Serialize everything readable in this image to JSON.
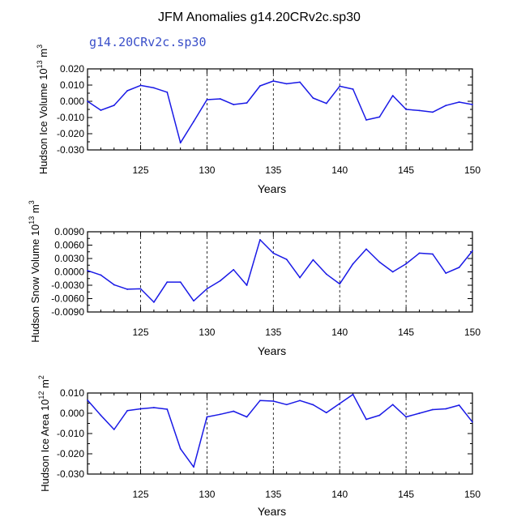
{
  "figure": {
    "title": "JFM Anomalies g14.20CRv2c.sp30",
    "subtitle": "g14.20CRv2c.sp30",
    "line_color": "#1a1ae6",
    "subtitle_color": "#3a4fc9"
  },
  "chart_data": [
    {
      "type": "line",
      "ylabel_main": "Hudson Ice Volume 10",
      "ylabel_exp": "13",
      "ylabel_unit": " m",
      "ylabel_unit_exp": "3",
      "xlabel": "Years",
      "xlim": [
        121,
        150
      ],
      "ylim": [
        -0.03,
        0.02
      ],
      "xticks": [
        125,
        130,
        135,
        140,
        145,
        150
      ],
      "xtick_labels": [
        "125",
        "130",
        "135",
        "140",
        "145",
        "150"
      ],
      "yticks": [
        0.02,
        0.01,
        0.0,
        -0.01,
        -0.02,
        -0.03
      ],
      "ytick_labels": [
        "0.020",
        "0.010",
        "0.000",
        "-0.010",
        "-0.020",
        "-0.030"
      ],
      "grid": "dashed vertical at x ticks",
      "x": [
        121,
        122,
        123,
        124,
        125,
        126,
        127,
        128,
        129,
        130,
        131,
        132,
        133,
        134,
        135,
        136,
        137,
        138,
        139,
        140,
        141,
        142,
        143,
        144,
        145,
        146,
        147,
        148,
        149,
        150
      ],
      "values": [
        0.0,
        -0.0055,
        -0.0025,
        0.0065,
        0.0098,
        0.0083,
        0.0056,
        -0.0256,
        -0.0125,
        0.001,
        0.0015,
        -0.002,
        -0.001,
        0.0095,
        0.0125,
        0.0108,
        0.0118,
        0.002,
        -0.0013,
        0.0093,
        0.0075,
        -0.0115,
        -0.0097,
        0.0035,
        -0.005,
        -0.0057,
        -0.0067,
        -0.0026,
        -0.0005,
        -0.002
      ]
    },
    {
      "type": "line",
      "ylabel_main": "Hudson Snow Volume 10",
      "ylabel_exp": "13",
      "ylabel_unit": " m",
      "ylabel_unit_exp": "3",
      "xlabel": "Years",
      "xlim": [
        121,
        150
      ],
      "ylim": [
        -0.009,
        0.009
      ],
      "xticks": [
        125,
        130,
        135,
        140,
        145,
        150
      ],
      "xtick_labels": [
        "125",
        "130",
        "135",
        "140",
        "145",
        "150"
      ],
      "yticks": [
        0.009,
        0.006,
        0.003,
        0.0,
        -0.003,
        -0.006,
        -0.009
      ],
      "ytick_labels": [
        "0.0090",
        "0.0060",
        "0.0030",
        "0.0000",
        "-0.0030",
        "-0.0060",
        "-0.0090"
      ],
      "grid": "dashed vertical at x ticks",
      "x": [
        121,
        122,
        123,
        124,
        125,
        126,
        127,
        128,
        129,
        130,
        131,
        132,
        133,
        134,
        135,
        136,
        137,
        138,
        139,
        140,
        141,
        142,
        143,
        144,
        145,
        146,
        147,
        148,
        149,
        150
      ],
      "values": [
        0.0003,
        -0.0007,
        -0.0029,
        -0.0039,
        -0.0038,
        -0.0068,
        -0.0023,
        -0.0023,
        -0.0065,
        -0.0038,
        -0.002,
        0.0005,
        -0.003,
        0.0072,
        0.0042,
        0.0028,
        -0.0013,
        0.0027,
        -0.0005,
        -0.0027,
        0.0018,
        0.0051,
        0.0022,
        0.0,
        0.0018,
        0.0042,
        0.004,
        -0.0003,
        0.001,
        0.0047
      ]
    },
    {
      "type": "line",
      "ylabel_main": "Hudson Ice Area 10",
      "ylabel_exp": "12",
      "ylabel_unit": " m",
      "ylabel_unit_exp": "2",
      "xlabel": "Years",
      "xlim": [
        121,
        150
      ],
      "ylim": [
        -0.03,
        0.01
      ],
      "xticks": [
        125,
        130,
        135,
        140,
        145,
        150
      ],
      "xtick_labels": [
        "125",
        "130",
        "135",
        "140",
        "145",
        "150"
      ],
      "yticks": [
        0.01,
        0.0,
        -0.01,
        -0.02,
        -0.03
      ],
      "ytick_labels": [
        "0.010",
        "0.000",
        "-0.010",
        "-0.020",
        "-0.030"
      ],
      "grid": "dashed vertical at x ticks",
      "x": [
        121,
        122,
        123,
        124,
        125,
        126,
        127,
        128,
        129,
        130,
        131,
        132,
        133,
        134,
        135,
        136,
        137,
        138,
        139,
        140,
        141,
        142,
        143,
        144,
        145,
        146,
        147,
        148,
        149,
        150
      ],
      "values": [
        0.0065,
        -0.001,
        -0.008,
        0.0013,
        0.0022,
        0.0028,
        0.002,
        -0.0175,
        -0.0265,
        -0.0018,
        -0.0005,
        0.001,
        -0.0018,
        0.0063,
        0.006,
        0.0043,
        0.0063,
        0.0042,
        0.0003,
        0.0048,
        0.0093,
        -0.003,
        -0.001,
        0.0043,
        -0.0018,
        0.0,
        0.0018,
        0.0022,
        0.004,
        -0.0043
      ]
    }
  ]
}
